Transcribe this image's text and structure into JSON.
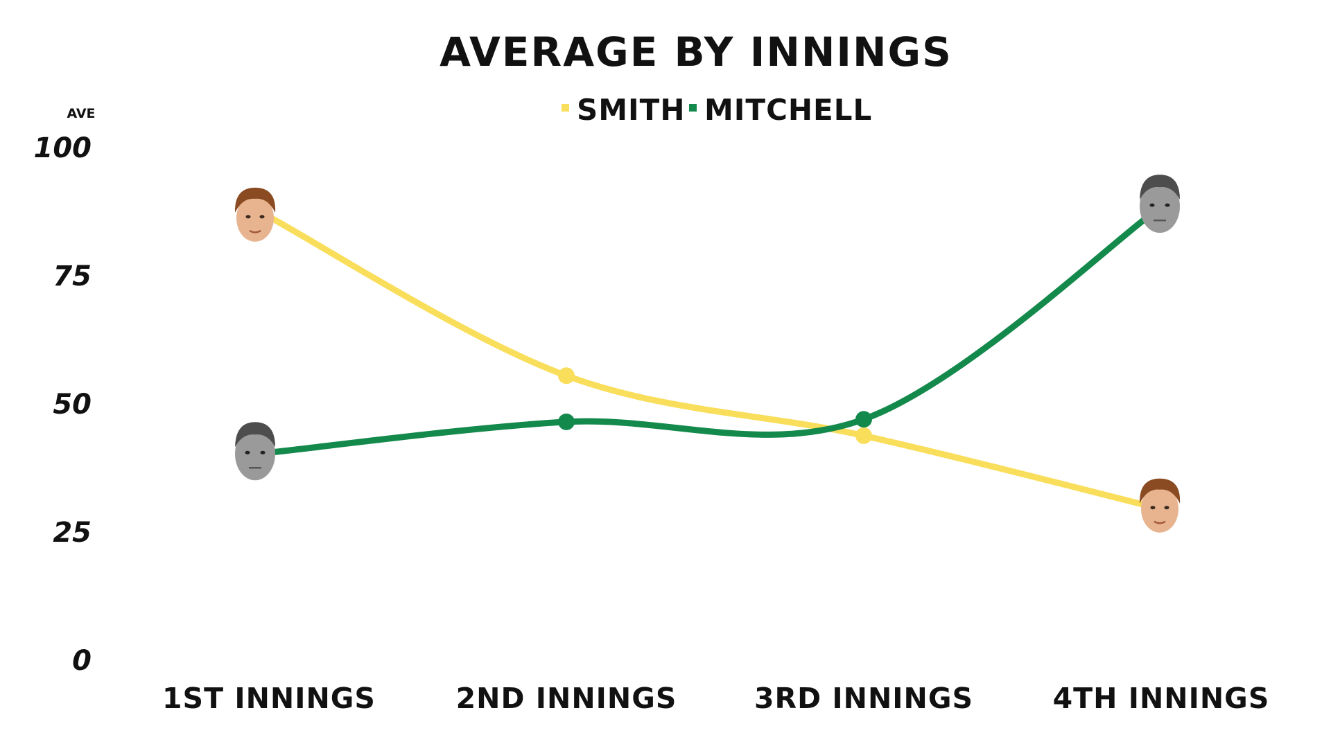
{
  "chart_data": {
    "type": "line",
    "title": "AVERAGE BY INNINGS",
    "ylabel": "AVE",
    "xlabel": "",
    "categories": [
      "1ST INNINGS",
      "2ND INNINGS",
      "3RD INNINGS",
      "4TH INNINGS"
    ],
    "ylim": [
      0,
      100
    ],
    "yticks": [
      "0",
      "25",
      "50",
      "75",
      "100"
    ],
    "grid": false,
    "legend": "top-center",
    "series": [
      {
        "name": "SMITH",
        "color": "#f9de5b",
        "values": [
          86.5,
          55.5,
          43.8,
          29.5
        ],
        "endpoint_marker": "face-icon"
      },
      {
        "name": "MITCHELL",
        "color": "#14894c",
        "values": [
          40.5,
          46.5,
          47.0,
          88.5
        ],
        "endpoint_marker": "face-icon"
      }
    ]
  }
}
